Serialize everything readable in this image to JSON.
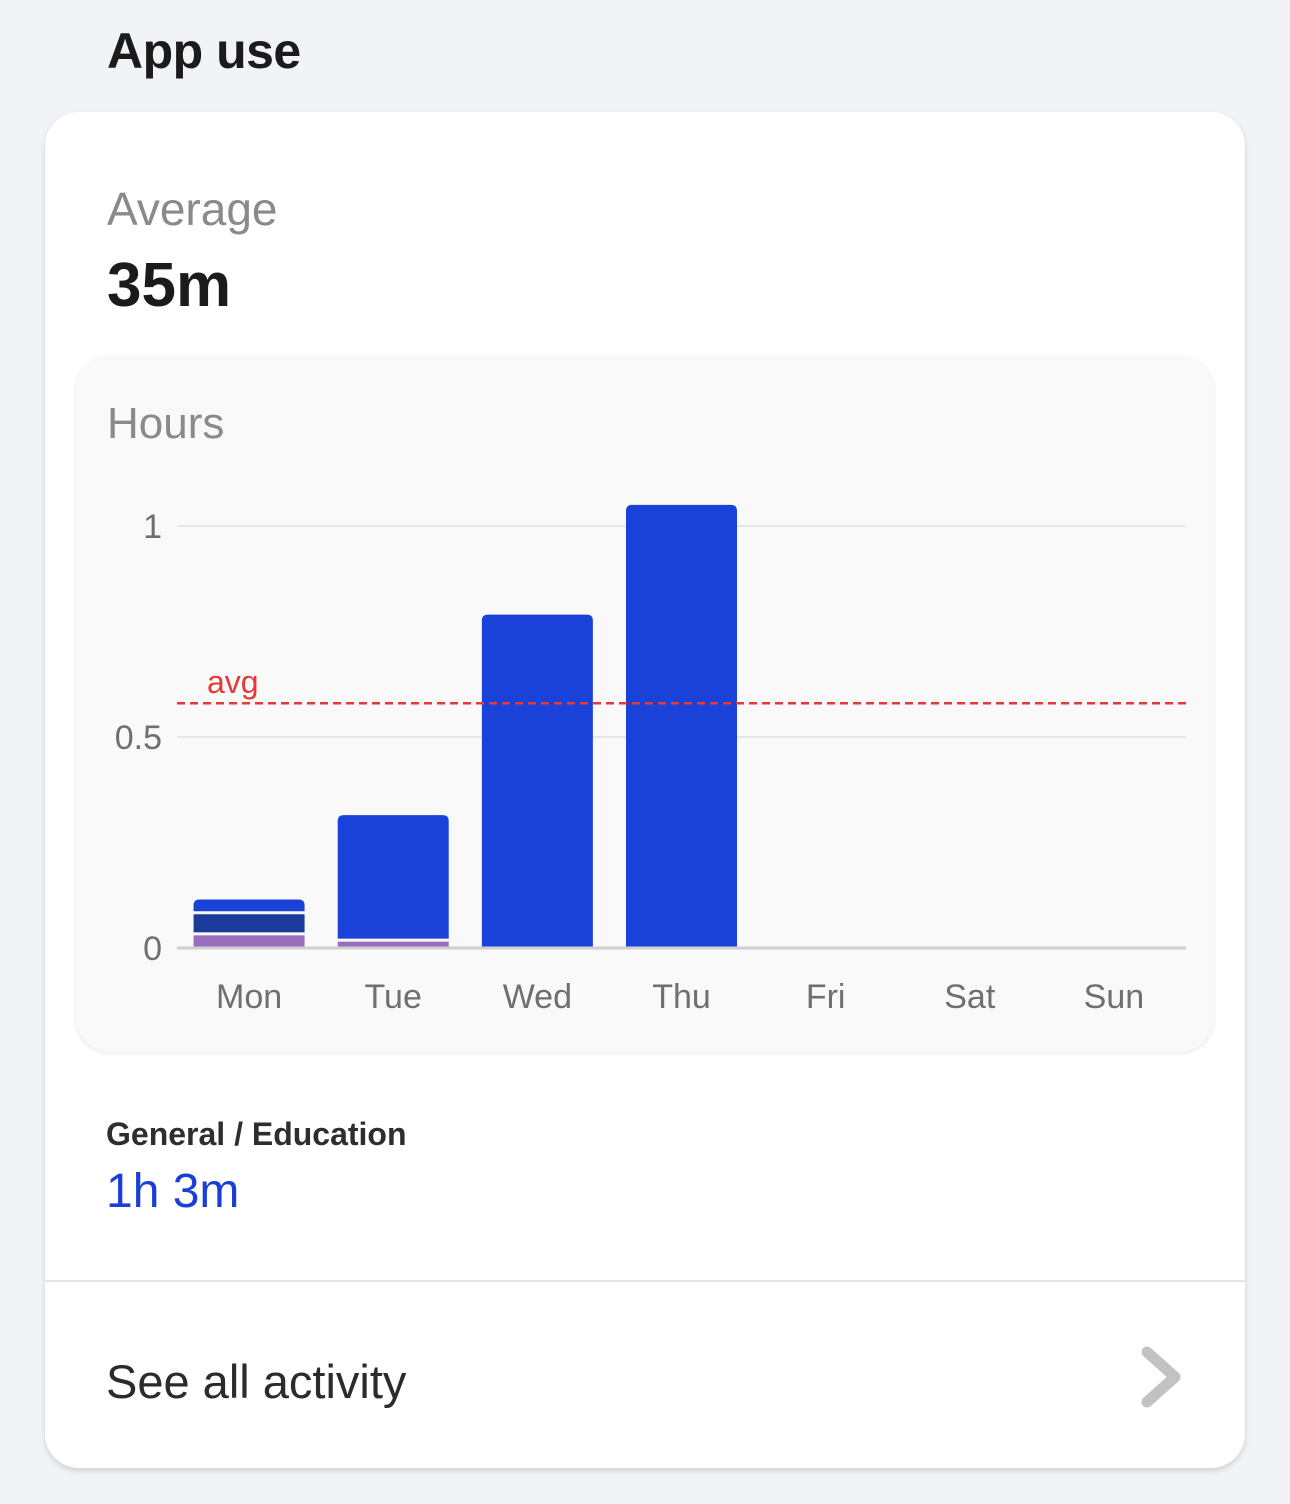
{
  "section_title": "App use",
  "summary": {
    "average_label": "Average",
    "average_value": "35m"
  },
  "chart_data": {
    "type": "bar",
    "stacked": true,
    "ylabel": "Hours",
    "ylim": [
      0,
      1
    ],
    "yticks": [
      {
        "value": 1,
        "label": "1"
      },
      {
        "value": 0.5,
        "label": "0.5"
      },
      {
        "value": 0,
        "label": "0"
      }
    ],
    "grid": true,
    "categories": [
      "Mon",
      "Tue",
      "Wed",
      "Thu",
      "Fri",
      "Sat",
      "Sun"
    ],
    "series": [
      {
        "color": "#9b6dbf",
        "values": [
          0.03,
          0.015,
          0,
          0,
          0,
          0,
          0
        ]
      },
      {
        "color": "#1c3a9c",
        "values": [
          0.05,
          0,
          0,
          0,
          0,
          0,
          0
        ]
      },
      {
        "color": "#1b42d8",
        "values": [
          0.035,
          0.3,
          0.79,
          1.05,
          0,
          0,
          0
        ]
      }
    ],
    "average": {
      "label": "avg",
      "value": 0.58,
      "color": "#e53935"
    }
  },
  "category": {
    "name": "General / Education",
    "total": "1h 3m"
  },
  "footer": {
    "see_all_label": "See all activity",
    "chevron_icon": "chevron-right-icon"
  }
}
